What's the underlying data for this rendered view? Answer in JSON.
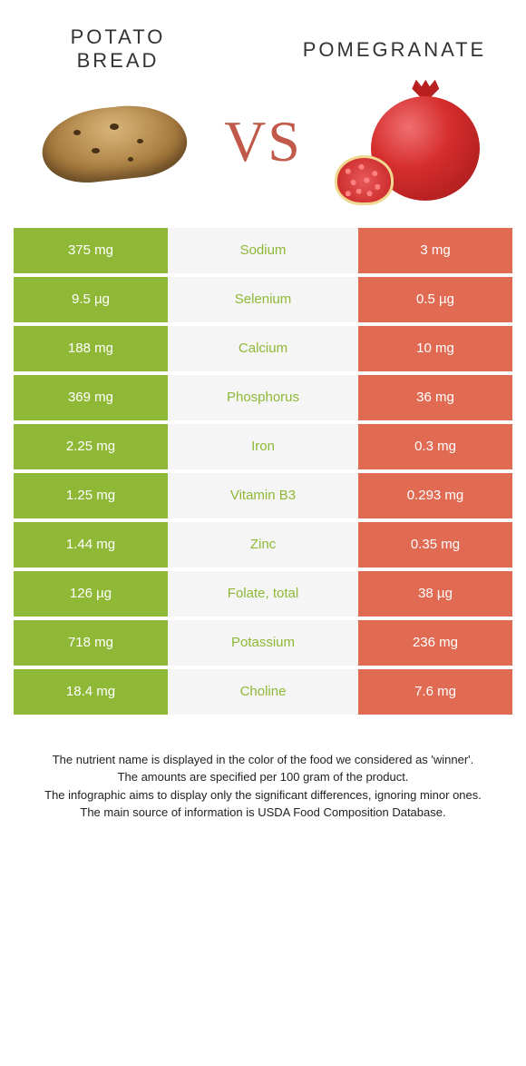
{
  "foods": {
    "left": {
      "title": "Potato bread",
      "color": "#8fb837"
    },
    "right": {
      "title": "Pomegranate",
      "color": "#e06a52"
    }
  },
  "vs_label": "VS",
  "vs_color": "#c0594a",
  "mid_bg": "#f5f5f5",
  "nutrients": [
    {
      "name": "Sodium",
      "left": "375 mg",
      "right": "3 mg",
      "winner": "left"
    },
    {
      "name": "Selenium",
      "left": "9.5 µg",
      "right": "0.5 µg",
      "winner": "left"
    },
    {
      "name": "Calcium",
      "left": "188 mg",
      "right": "10 mg",
      "winner": "left"
    },
    {
      "name": "Phosphorus",
      "left": "369 mg",
      "right": "36 mg",
      "winner": "left"
    },
    {
      "name": "Iron",
      "left": "2.25 mg",
      "right": "0.3 mg",
      "winner": "left"
    },
    {
      "name": "Vitamin B3",
      "left": "1.25 mg",
      "right": "0.293 mg",
      "winner": "left"
    },
    {
      "name": "Zinc",
      "left": "1.44 mg",
      "right": "0.35 mg",
      "winner": "left"
    },
    {
      "name": "Folate, total",
      "left": "126 µg",
      "right": "38 µg",
      "winner": "left"
    },
    {
      "name": "Potassium",
      "left": "718 mg",
      "right": "236 mg",
      "winner": "left"
    },
    {
      "name": "Choline",
      "left": "18.4 mg",
      "right": "7.6 mg",
      "winner": "left"
    }
  ],
  "footer": {
    "line1": "The nutrient name is displayed in the color of the food we considered as 'winner'.",
    "line2": "The amounts are specified per 100 gram of the product.",
    "line3": "The infographic aims to display only the significant differences, ignoring minor ones.",
    "line4": "The main source of information is USDA Food Composition Database."
  }
}
